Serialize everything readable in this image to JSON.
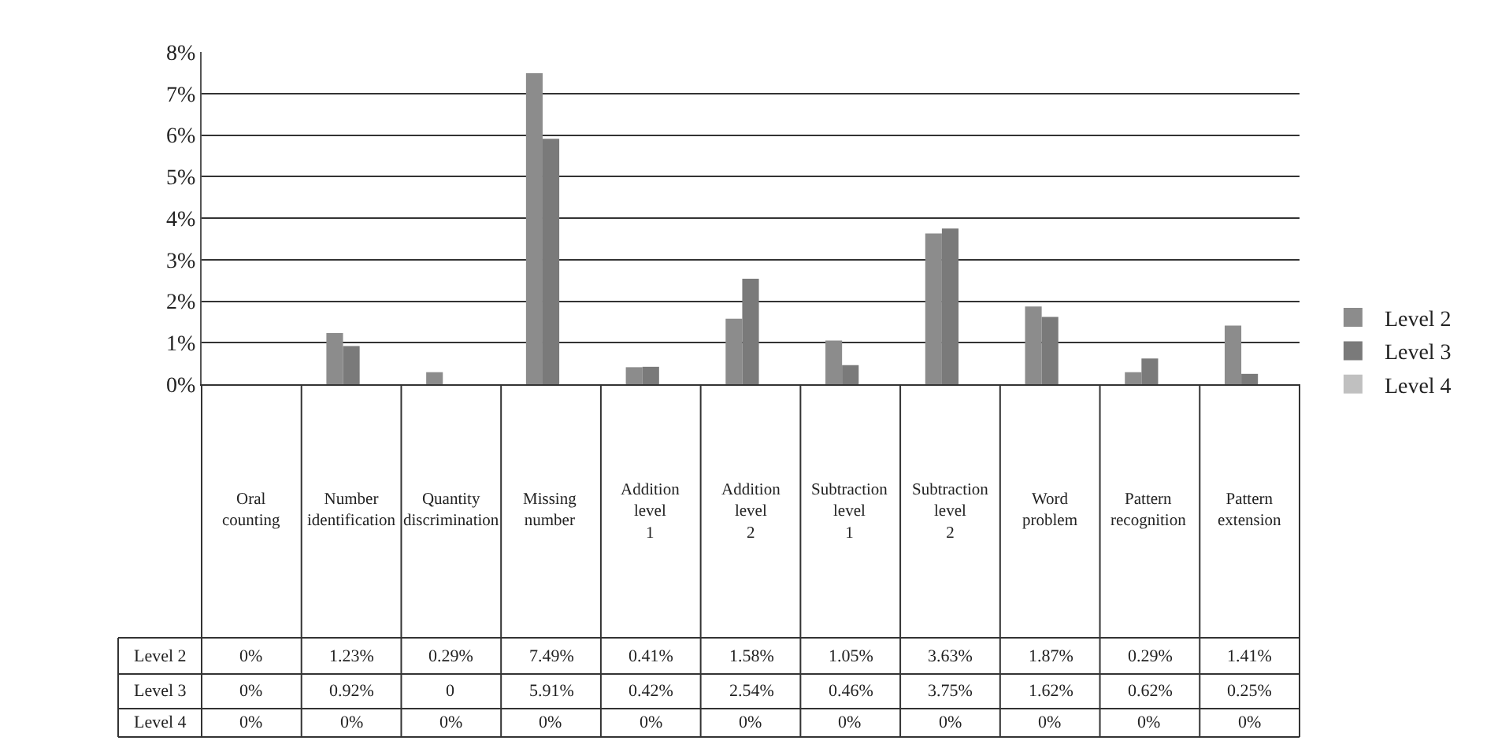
{
  "chart_data": {
    "type": "bar",
    "categories": [
      "Oral counting",
      "Number identification",
      "Quantity discrimination",
      "Missing number",
      "Addition level 1",
      "Addition level 2",
      "Subtraction level 1",
      "Subtraction level 2",
      "Word problem",
      "Pattern recognition",
      "Pattern extension"
    ],
    "series": [
      {
        "name": "Level 2",
        "color": "#8c8c8c",
        "values": [
          0,
          1.23,
          0.29,
          7.49,
          0.41,
          1.58,
          1.05,
          3.63,
          1.87,
          0.29,
          1.41
        ],
        "value_labels": [
          "0%",
          "1.23%",
          "0.29%",
          "7.49%",
          "0.41%",
          "1.58%",
          "1.05%",
          "3.63%",
          "1.87%",
          "0.29%",
          "1.41%"
        ]
      },
      {
        "name": "Level 3",
        "color": "#7a7a7a",
        "values": [
          0,
          0.92,
          0,
          5.91,
          0.42,
          2.54,
          0.46,
          3.75,
          1.62,
          0.62,
          0.25
        ],
        "value_labels": [
          "0%",
          "0.92%",
          "0",
          "5.91%",
          "0.42%",
          "2.54%",
          "0.46%",
          "3.75%",
          "1.62%",
          "0.62%",
          "0.25%"
        ]
      },
      {
        "name": "Level 4",
        "color": "#c0c0c0",
        "values": [
          0,
          0,
          0,
          0,
          0,
          0,
          0,
          0,
          0,
          0,
          0
        ],
        "value_labels": [
          "0%",
          "0%",
          "0%",
          "0%",
          "0%",
          "0%",
          "0%",
          "0%",
          "0%",
          "0%",
          "0%"
        ]
      }
    ],
    "ylim": [
      0,
      8
    ],
    "yticks": [
      {
        "value": 0,
        "label": "0%"
      },
      {
        "value": 1,
        "label": "1%"
      },
      {
        "value": 2,
        "label": "2%"
      },
      {
        "value": 3,
        "label": "3%"
      },
      {
        "value": 4,
        "label": "4%"
      },
      {
        "value": 5,
        "label": "5%"
      },
      {
        "value": 6,
        "label": "6%"
      },
      {
        "value": 7,
        "label": "7%"
      },
      {
        "value": 8,
        "label": "8%"
      }
    ],
    "grid": "y",
    "legend": "right"
  }
}
